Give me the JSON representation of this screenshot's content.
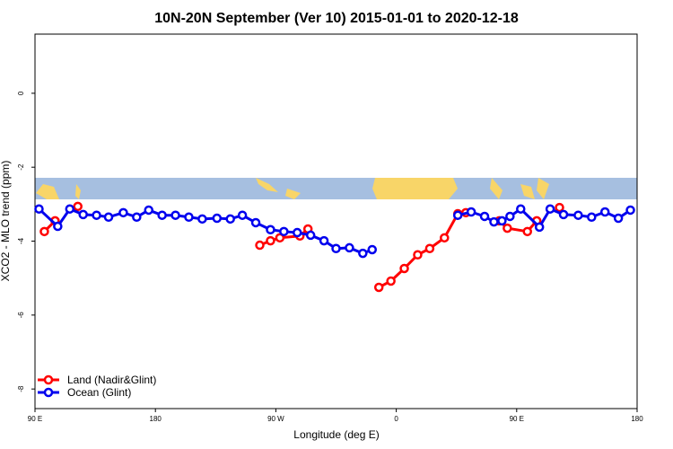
{
  "chart_data": {
    "type": "line",
    "title": "10N-20N September (Ver 10)   2015-01-01 to 2020-12-18",
    "x_label": "Longitude (deg E)",
    "y_label": "XCO2 - MLO trend (ppm)",
    "xlim": [
      90,
      540
    ],
    "ylim": [
      -8.53,
      1.6
    ],
    "xticks": [
      {
        "value": 90,
        "label": "90 E"
      },
      180,
      {
        "value": 270,
        "label": "90 W"
      },
      {
        "value": 360,
        "label": "0"
      },
      {
        "value": 450,
        "label": "90 E"
      },
      {
        "value": 540,
        "label": "180"
      }
    ],
    "yticks": [
      0,
      -2,
      -4,
      -6,
      -8
    ],
    "legend": "bottom-left",
    "series": [
      {
        "name": "Land (Nadir&Glint)",
        "color": "#ff0000",
        "x": [
          97,
          105,
          110,
          122,
          200,
          258,
          266,
          273,
          288,
          294,
          330,
          347,
          356,
          366,
          376,
          385,
          396,
          406,
          412,
          420,
          437,
          443,
          458,
          465,
          470,
          482
        ],
        "values": [
          -3.74,
          -3.45,
          null,
          -3.06,
          null,
          -4.11,
          -3.99,
          -3.91,
          -3.86,
          -3.67,
          null,
          -5.25,
          -5.08,
          -4.74,
          -4.37,
          -4.2,
          -3.91,
          -3.26,
          -3.23,
          null,
          -3.45,
          -3.65,
          -3.74,
          -3.45,
          null,
          -3.09
        ]
      },
      {
        "name": "Ocean (Glint)",
        "color": "#0000ee",
        "x": [
          93,
          107,
          116,
          126,
          136,
          145,
          156,
          166,
          175,
          185,
          195,
          205,
          215,
          226,
          236,
          245,
          255,
          266,
          276,
          286,
          296,
          306,
          315,
          325,
          335,
          342,
          376,
          406,
          416,
          426,
          433,
          439,
          445,
          453,
          467,
          475,
          485,
          496,
          506,
          516,
          526,
          535
        ],
        "values": [
          -3.13,
          -3.6,
          -3.13,
          -3.28,
          -3.3,
          -3.35,
          -3.23,
          -3.35,
          -3.16,
          -3.3,
          -3.3,
          -3.35,
          -3.4,
          -3.38,
          -3.4,
          -3.3,
          -3.5,
          -3.69,
          -3.74,
          -3.77,
          -3.84,
          -3.99,
          -4.2,
          -4.18,
          -4.33,
          -4.23,
          null,
          -3.3,
          -3.21,
          -3.33,
          -3.48,
          -3.45,
          -3.33,
          -3.13,
          -3.62,
          -3.13,
          -3.28,
          -3.3,
          -3.35,
          -3.21,
          -3.38,
          -3.16
        ]
      }
    ]
  }
}
